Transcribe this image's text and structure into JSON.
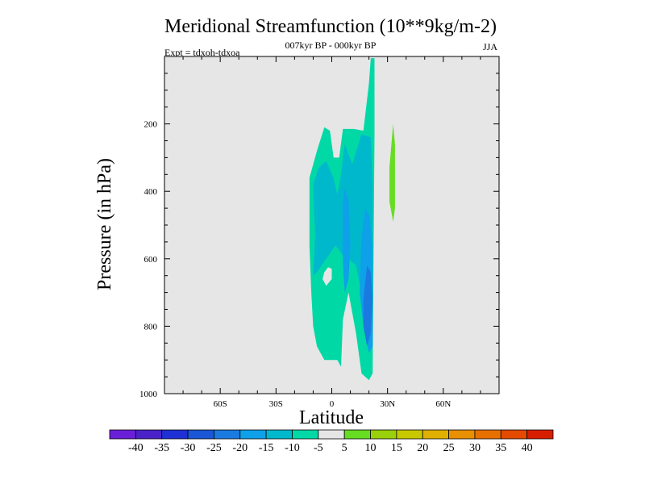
{
  "chart_data": {
    "type": "heatmap",
    "title": "Meridional Streamfunction (10**9kg/m-2)",
    "subtitle_center": "007kyr BP - 000kyr BP",
    "subtitle_left": "Expt = tdxoh-tdxoa",
    "subtitle_right": "JJA",
    "xlabel": "Latitude",
    "ylabel": "Pressure (in hPa)",
    "xlim": [
      -90,
      90
    ],
    "ylim": [
      1000,
      0
    ],
    "x_ticks": [
      {
        "value": -60,
        "label": "60S"
      },
      {
        "value": -30,
        "label": "30S"
      },
      {
        "value": 0,
        "label": "0"
      },
      {
        "value": 30,
        "label": "30N"
      },
      {
        "value": 60,
        "label": "60N"
      }
    ],
    "y_ticks": [
      {
        "value": 200,
        "label": "200"
      },
      {
        "value": 400,
        "label": "400"
      },
      {
        "value": 600,
        "label": "600"
      },
      {
        "value": 800,
        "label": "800"
      },
      {
        "value": 1000,
        "label": "1000"
      }
    ],
    "plot_background": "#e6e6e6",
    "regions": [
      {
        "name": "-10 to -5",
        "color": "#00d9a6",
        "points": [
          [
            -12,
            1000
          ],
          [
            -12,
            360
          ],
          [
            -8,
            280
          ],
          [
            -4,
            210
          ],
          [
            -1,
            220
          ],
          [
            1,
            300
          ],
          [
            4,
            300
          ],
          [
            6,
            215
          ],
          [
            12,
            215
          ],
          [
            17,
            220
          ],
          [
            20,
            80
          ],
          [
            21,
            5
          ],
          [
            23,
            5
          ],
          [
            23,
            230
          ],
          [
            22,
            940
          ],
          [
            20,
            960
          ],
          [
            16,
            940
          ],
          [
            13,
            820
          ],
          [
            9,
            700
          ],
          [
            6,
            780
          ],
          [
            5,
            920
          ],
          [
            3,
            900
          ],
          [
            1,
            900
          ],
          [
            -4,
            900
          ],
          [
            -8,
            860
          ],
          [
            -10,
            800
          ],
          [
            -11,
            700
          ],
          [
            -12,
            560
          ]
        ]
      },
      {
        "name": "-15 to -10",
        "color": "#00b8cc",
        "points": [
          [
            -10,
            650
          ],
          [
            -9,
            530
          ],
          [
            -10,
            380
          ],
          [
            -7,
            330
          ],
          [
            -3,
            310
          ],
          [
            1,
            360
          ],
          [
            3,
            410
          ],
          [
            5,
            350
          ],
          [
            7,
            260
          ],
          [
            11,
            320
          ],
          [
            16,
            230
          ],
          [
            21,
            240
          ],
          [
            22,
            380
          ],
          [
            22,
            840
          ],
          [
            19,
            800
          ],
          [
            16,
            700
          ],
          [
            13,
            620
          ],
          [
            9,
            600
          ],
          [
            6,
            590
          ],
          [
            2,
            560
          ],
          [
            -3,
            600
          ],
          [
            -8,
            640
          ]
        ]
      },
      {
        "name": "-20 to -15",
        "color": "#0ea0e8",
        "points": [
          [
            6,
            440
          ],
          [
            7,
            390
          ],
          [
            9,
            430
          ],
          [
            10,
            560
          ],
          [
            9,
            660
          ],
          [
            7,
            700
          ],
          [
            6,
            620
          ]
        ]
      },
      {
        "name": "-20 to -15",
        "color": "#0ea0e8",
        "points": [
          [
            16,
            540
          ],
          [
            18,
            450
          ],
          [
            20,
            470
          ],
          [
            22,
            560
          ],
          [
            22,
            860
          ],
          [
            20,
            880
          ],
          [
            17,
            800
          ],
          [
            15,
            700
          ]
        ]
      },
      {
        "name": "-25 to -20",
        "color": "#1a7ae0",
        "points": [
          [
            17,
            720
          ],
          [
            19,
            620
          ],
          [
            21,
            640
          ],
          [
            22,
            720
          ],
          [
            21,
            820
          ],
          [
            19,
            860
          ],
          [
            17,
            800
          ]
        ]
      },
      {
        "name": "5 to 10",
        "color": "#66dd22",
        "points": [
          [
            31,
            330
          ],
          [
            33,
            200
          ],
          [
            34,
            260
          ],
          [
            34,
            450
          ],
          [
            33,
            490
          ],
          [
            31,
            430
          ]
        ]
      },
      {
        "name": "hole",
        "color": "#e6e6e6",
        "points": [
          [
            -4,
            640
          ],
          [
            -2,
            625
          ],
          [
            0,
            630
          ],
          [
            0,
            660
          ],
          [
            -3,
            680
          ],
          [
            -5,
            660
          ]
        ]
      }
    ],
    "colorbar": {
      "label_values": [
        "-40",
        "-35",
        "-30",
        "-25",
        "-20",
        "-15",
        "-10",
        "-5",
        "5",
        "10",
        "15",
        "20",
        "25",
        "30",
        "35",
        "40"
      ],
      "colors": [
        "#6a1fd8",
        "#4a22c8",
        "#1f2fd6",
        "#1a56d6",
        "#1a7ae0",
        "#0ea0e8",
        "#00b8cc",
        "#00d9a6",
        "#e6e6e6",
        "#66dd22",
        "#9ad00a",
        "#c8c800",
        "#e0b000",
        "#e89000",
        "#e87000",
        "#e44a00",
        "#d81e00"
      ]
    }
  }
}
